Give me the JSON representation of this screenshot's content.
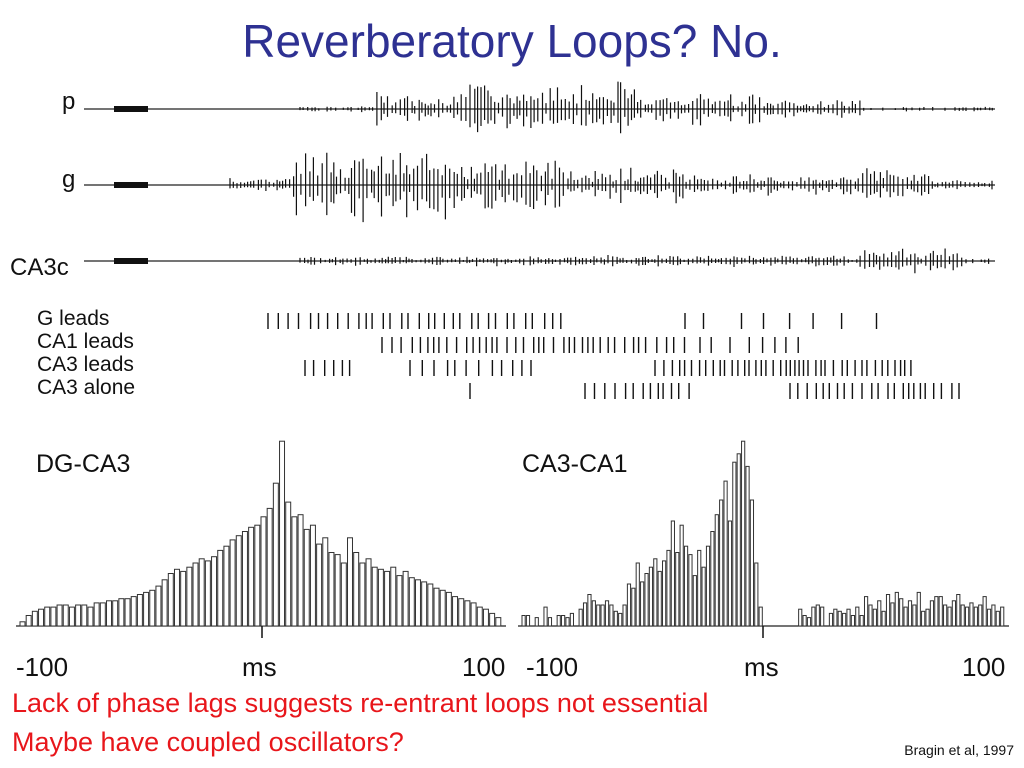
{
  "slide": {
    "title": "Reverberatory Loops? No.",
    "caption_line1": "Lack of phase lags suggests re-entrant loops not essential",
    "caption_line2": "Maybe have coupled oscillators?",
    "citation": "Bragin et al, 1997"
  },
  "traces": {
    "labels": [
      "p",
      "g",
      "CA3c"
    ]
  },
  "raster": {
    "labels": [
      "G leads",
      "CA1 leads",
      "CA3 leads",
      "CA3 alone"
    ]
  },
  "colors": {
    "title": "#2e3192",
    "caption": "#e8161b"
  },
  "chart_data": [
    {
      "type": "bar",
      "title": "DG-CA3",
      "xlabel": "ms",
      "x_tick_labels": [
        "-100",
        "100"
      ],
      "xlim": [
        -100,
        100
      ],
      "values": [
        2,
        5,
        7,
        8,
        9,
        9,
        10,
        10,
        9,
        10,
        10,
        9,
        11,
        11,
        12,
        12,
        13,
        13,
        14,
        15,
        16,
        17,
        19,
        22,
        25,
        27,
        26,
        28,
        30,
        32,
        31,
        33,
        36,
        38,
        41,
        43,
        45,
        47,
        48,
        52,
        56,
        68,
        88,
        59,
        52,
        53,
        46,
        48,
        39,
        42,
        35,
        34,
        30,
        42,
        35,
        30,
        32,
        28,
        27,
        26,
        28,
        24,
        26,
        23,
        22,
        21,
        20,
        18,
        17,
        16,
        14,
        13,
        12,
        11,
        9,
        8,
        6,
        4
      ]
    },
    {
      "type": "bar",
      "title": "CA3-CA1",
      "xlabel": "ms",
      "x_tick_labels": [
        "-100",
        "100"
      ],
      "xlim": [
        -100,
        100
      ],
      "values": [
        5,
        5,
        0,
        4,
        0,
        9,
        4,
        0,
        5,
        5,
        4,
        6,
        0,
        8,
        11,
        15,
        12,
        10,
        10,
        12,
        10,
        7,
        6,
        10,
        20,
        18,
        30,
        21,
        25,
        28,
        32,
        26,
        31,
        36,
        50,
        35,
        48,
        38,
        34,
        24,
        36,
        28,
        38,
        45,
        53,
        60,
        69,
        50,
        78,
        82,
        88,
        76,
        60,
        30,
        9,
        0,
        0,
        0,
        0,
        0,
        0,
        0,
        0,
        8,
        5,
        4,
        9,
        10,
        9,
        0,
        6,
        8,
        7,
        6,
        8,
        5,
        9,
        5,
        14,
        10,
        8,
        12,
        7,
        15,
        11,
        16,
        13,
        9,
        12,
        10,
        16,
        7,
        8,
        12,
        14,
        14,
        10,
        9,
        12,
        15,
        10,
        9,
        11,
        9,
        10,
        14,
        8,
        10,
        7,
        9
      ]
    }
  ]
}
